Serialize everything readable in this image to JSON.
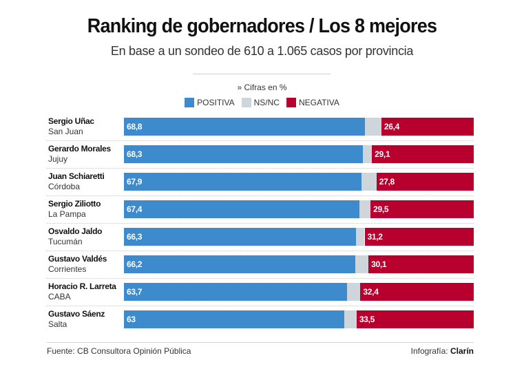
{
  "header": {
    "title": "Ranking de gobernadores / Los 8 mejores",
    "subtitle": "En base a un sondeo de 610 a 1.065 casos por provincia",
    "units_note": "» Cifras en %"
  },
  "footer": {
    "source": "Fuente: CB Consultora Opinión Pública",
    "credit_prefix": "Infografía: ",
    "credit_brand": "Clarín"
  },
  "colors": {
    "positiva": "#3d8bcc",
    "nsnc": "#cfd6db",
    "negativa": "#b8002f"
  },
  "chart_data": {
    "type": "bar",
    "orientation": "horizontal",
    "stacked": true,
    "normalized_to": 100,
    "title": "Ranking de gobernadores / Los 8 mejores",
    "subtitle": "En base a un sondeo de 610 a 1.065 casos por provincia",
    "unit": "%",
    "xlim": [
      0,
      100
    ],
    "grid": false,
    "legend_placement": "top-center",
    "legend": [
      "POSITIVA",
      "NS/NC",
      "NEGATIVA"
    ],
    "categories": [
      {
        "name": "Sergio Uñac",
        "province": "San Juan"
      },
      {
        "name": "Gerardo Morales",
        "province": "Jujuy"
      },
      {
        "name": "Juan Schiaretti",
        "province": "Córdoba"
      },
      {
        "name": "Sergio Ziliotto",
        "province": "La Pampa"
      },
      {
        "name": "Osvaldo Jaldo",
        "province": "Tucumán"
      },
      {
        "name": "Gustavo Valdés",
        "province": "Corrientes"
      },
      {
        "name": "Horacio R. Larreta",
        "province": "CABA"
      },
      {
        "name": "Gustavo Sáenz",
        "province": "Salta"
      }
    ],
    "series": [
      {
        "name": "POSITIVA",
        "values": [
          68.8,
          68.3,
          67.9,
          67.4,
          66.3,
          66.2,
          63.7,
          63.0
        ],
        "labels": [
          "68,8",
          "68,3",
          "67,9",
          "67,4",
          "66,3",
          "66,2",
          "63,7",
          "63"
        ]
      },
      {
        "name": "NS/NC",
        "values": [
          4.8,
          2.6,
          4.3,
          3.1,
          2.5,
          3.7,
          3.9,
          3.5
        ],
        "labels": []
      },
      {
        "name": "NEGATIVA",
        "values": [
          26.4,
          29.1,
          27.8,
          29.5,
          31.2,
          30.1,
          32.4,
          33.5
        ],
        "labels": [
          "26,4",
          "29,1",
          "27,8",
          "29,5",
          "31,2",
          "30,1",
          "32,4",
          "33,5"
        ]
      }
    ],
    "source": "Fuente: CB Consultora Opinión Pública"
  }
}
